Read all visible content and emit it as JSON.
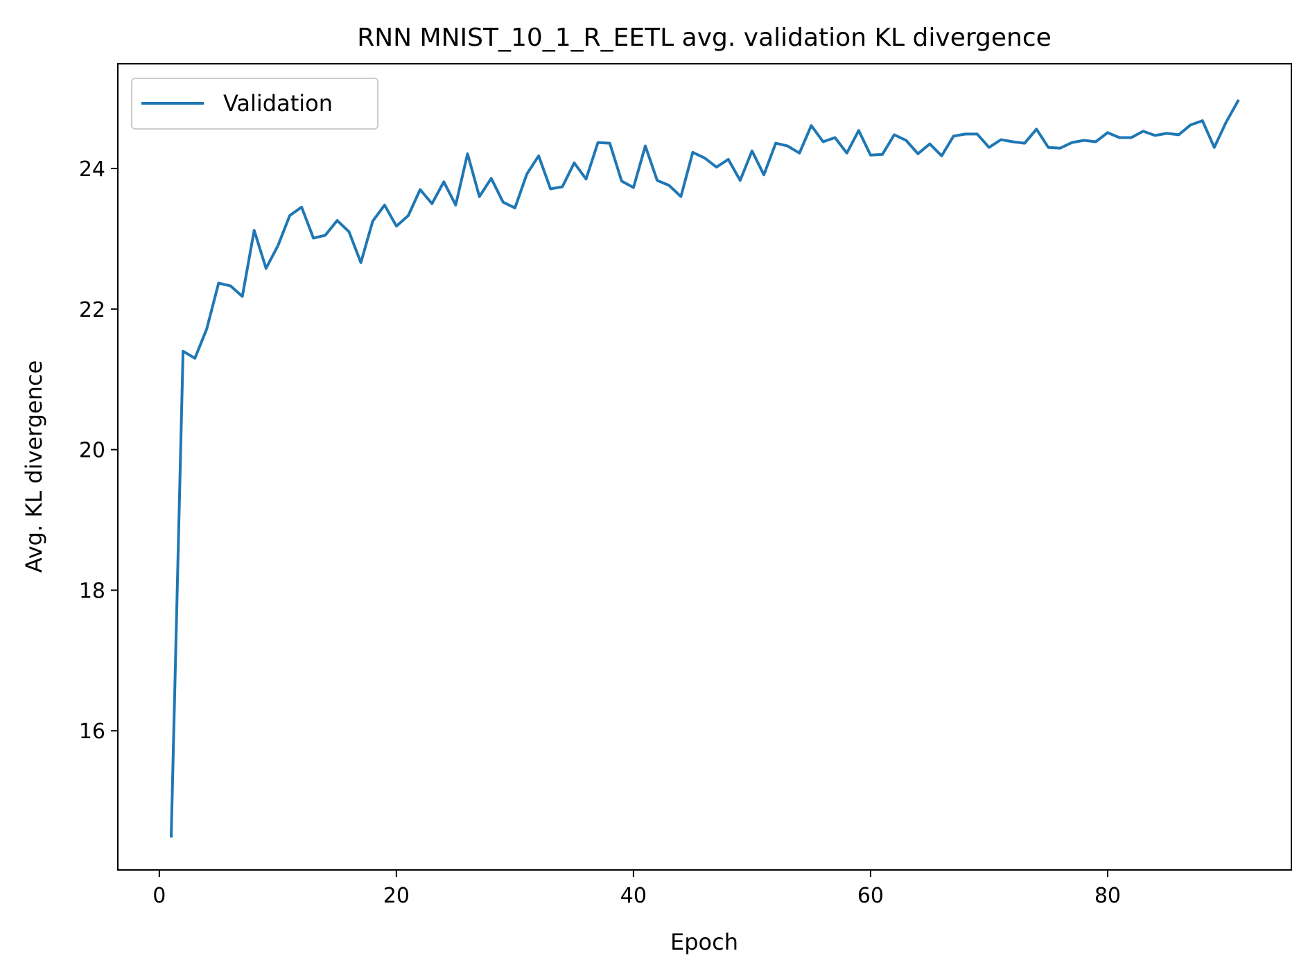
{
  "chart_data": {
    "type": "line",
    "title": "RNN MNIST_10_1_R_EETL avg. validation KL divergence",
    "xlabel": "Epoch",
    "ylabel": "Avg. KL divergence",
    "xlim": [
      -3.5,
      95.5
    ],
    "ylim": [
      14.02,
      25.49
    ],
    "xticks": [
      0,
      20,
      40,
      60,
      80
    ],
    "yticks": [
      16,
      18,
      20,
      22,
      24
    ],
    "grid": false,
    "legend_position": "top-left",
    "series": [
      {
        "name": "Validation",
        "color": "#1f77b4",
        "x": [
          1,
          2,
          3,
          4,
          5,
          6,
          7,
          8,
          9,
          10,
          11,
          12,
          13,
          14,
          15,
          16,
          17,
          18,
          19,
          20,
          21,
          22,
          23,
          24,
          25,
          26,
          27,
          28,
          29,
          30,
          31,
          32,
          33,
          34,
          35,
          36,
          37,
          38,
          39,
          40,
          41,
          42,
          43,
          44,
          45,
          46,
          47,
          48,
          49,
          50,
          51,
          52,
          53,
          54,
          55,
          56,
          57,
          58,
          59,
          60,
          61,
          62,
          63,
          64,
          65,
          66,
          67,
          68,
          69,
          70,
          71,
          72,
          73,
          74,
          75,
          76,
          77,
          78,
          79,
          80,
          81,
          82,
          83,
          84,
          85,
          86,
          87,
          88,
          89,
          90,
          91
        ],
        "y": [
          14.5,
          21.4,
          21.3,
          21.72,
          22.37,
          22.33,
          22.18,
          23.12,
          22.58,
          22.9,
          23.33,
          23.45,
          23.01,
          23.05,
          23.26,
          23.1,
          22.66,
          23.25,
          23.48,
          23.18,
          23.33,
          23.7,
          23.5,
          23.81,
          23.48,
          24.21,
          23.6,
          23.86,
          23.52,
          23.44,
          23.92,
          24.18,
          23.71,
          23.74,
          24.08,
          23.85,
          24.37,
          24.36,
          23.82,
          23.73,
          24.32,
          23.83,
          23.76,
          23.6,
          24.23,
          24.15,
          24.02,
          24.13,
          23.83,
          24.25,
          23.91,
          24.36,
          24.32,
          24.22,
          24.61,
          24.38,
          24.44,
          24.22,
          24.54,
          24.19,
          24.2,
          24.48,
          24.4,
          24.21,
          24.35,
          24.18,
          24.46,
          24.49,
          24.49,
          24.3,
          24.41,
          24.38,
          24.36,
          24.56,
          24.3,
          24.29,
          24.37,
          24.4,
          24.38,
          24.51,
          24.44,
          24.44,
          24.53,
          24.47,
          24.5,
          24.48,
          24.62,
          24.68,
          24.3,
          24.66,
          24.96
        ]
      }
    ]
  }
}
